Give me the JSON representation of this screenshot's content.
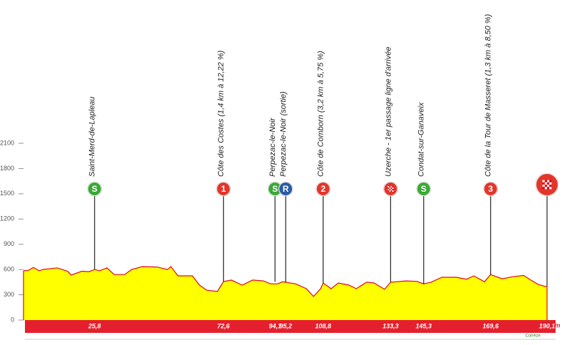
{
  "chart_data": {
    "type": "area",
    "x": [
      0,
      1.8,
      3.6,
      5.7,
      7,
      12.2,
      16,
      17.3,
      21.2,
      23.8,
      25.8,
      27.6,
      30.3,
      32.9,
      36.7,
      39.3,
      43.2,
      48.4,
      52.3,
      53.5,
      56.1,
      61.3,
      63.9,
      66.5,
      70.4,
      72.6,
      75.5,
      79.4,
      83.2,
      87.1,
      89.7,
      92.3,
      94.1,
      98.8,
      102.7,
      105.3,
      107.9,
      108.8,
      111.7,
      114.3,
      118.2,
      120.8,
      124.6,
      127.3,
      131.1,
      133.3,
      138.9,
      142.8,
      145.3,
      148,
      151.9,
      157.1,
      160.9,
      163.5,
      167.4,
      169.6,
      173.8,
      177.7,
      181.6,
      184.2,
      186.8,
      189.4,
      190.1
    ],
    "values": [
      585,
      590,
      625,
      585,
      600,
      620,
      580,
      535,
      580,
      575,
      600,
      585,
      620,
      540,
      540,
      600,
      635,
      630,
      600,
      635,
      525,
      525,
      415,
      355,
      340,
      457,
      475,
      415,
      475,
      465,
      430,
      430,
      455,
      430,
      373,
      280,
      373,
      440,
      373,
      440,
      415,
      373,
      450,
      440,
      365,
      450,
      465,
      460,
      430,
      450,
      508,
      508,
      485,
      525,
      455,
      540,
      490,
      515,
      530,
      475,
      425,
      400,
      400
    ],
    "color": "#ffff00",
    "line_color": "#e30613",
    "xlim": [
      0,
      190.1
    ],
    "ylim": [
      0,
      2100
    ],
    "yticks": [
      0,
      300,
      600,
      900,
      1200,
      1500,
      1800,
      2100
    ],
    "x_unit": "Km",
    "region": "Corrèze",
    "markers": [
      {
        "km": 25.8,
        "km_label": "25,8",
        "label": "Saint-Merd-de-Lapleau",
        "icon": "S",
        "icon_color": "#3aa935"
      },
      {
        "km": 72.6,
        "km_label": "72,6",
        "label": "Côte des Costes (1,4 km à 12,22 %)",
        "icon": "1",
        "icon_color": "#e3362a"
      },
      {
        "km": 94.1,
        "km_label": "94,1",
        "label": "Perpezac-le-Noir",
        "icon": "S",
        "icon_color": "#3aa935"
      },
      {
        "km": 95.2,
        "km_label": "95,2",
        "label": "Perpezac-le-Noir (sortie)",
        "icon": "R",
        "icon_color": "#2a5aa6"
      },
      {
        "km": 108.8,
        "km_label": "108,8",
        "label": "Côte de Comborn (3,2 km à 5,75 %)",
        "icon": "2",
        "icon_color": "#e3362a"
      },
      {
        "km": 133.3,
        "km_label": "133,3",
        "label": "Uzerche - 1er passage ligne d'arrivée",
        "flag": true,
        "icon_color": "#e3362a"
      },
      {
        "km": 145.3,
        "km_label": "145,3",
        "label": "Condat-sur-Ganaveix",
        "icon": "S",
        "icon_color": "#3aa935"
      },
      {
        "km": 169.6,
        "km_label": "169,6",
        "label": "Côte de la Tour de Masseret (1,3 km à 8,50 %)",
        "icon": "3",
        "icon_color": "#e3362a"
      },
      {
        "km": 190.1,
        "km_label": "190,1",
        "flag": true,
        "large": true,
        "icon_color": "#e3362a"
      }
    ]
  }
}
